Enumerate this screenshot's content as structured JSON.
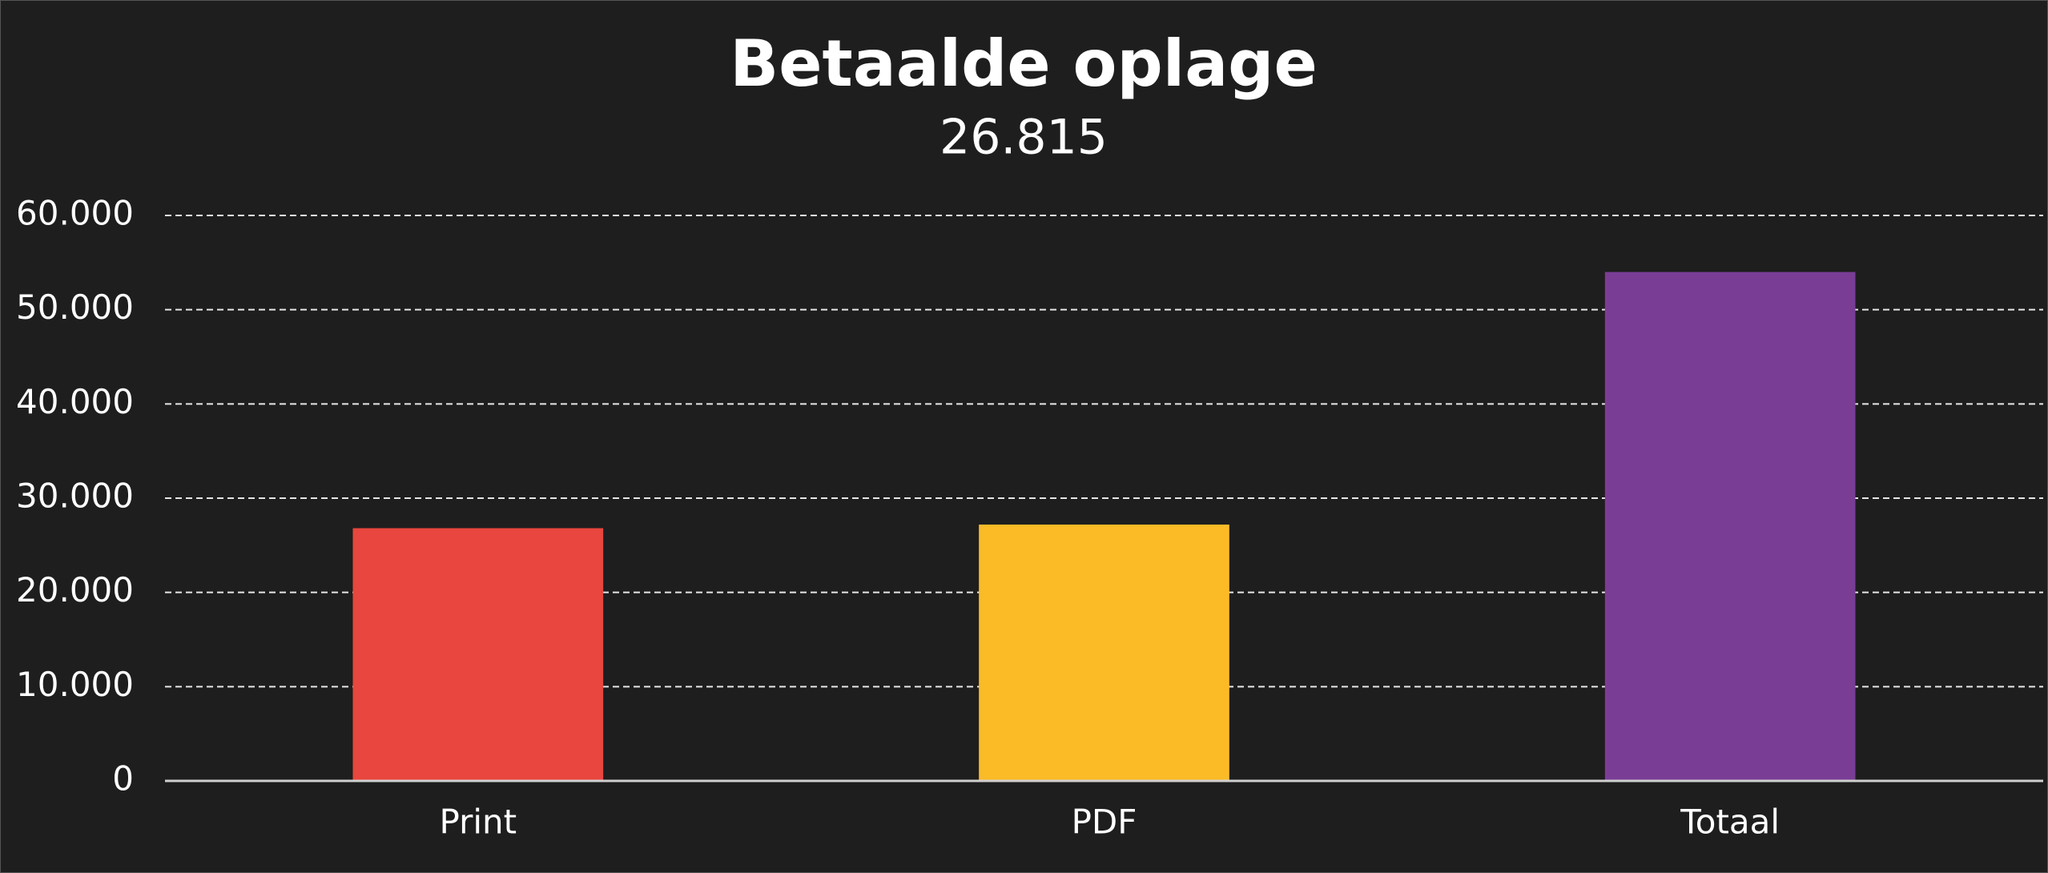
{
  "chart_data": {
    "type": "bar",
    "title": "Betaalde oplage",
    "subtitle": "26.815",
    "categories": [
      "Print",
      "PDF",
      "Totaal"
    ],
    "values": [
      26815,
      27200,
      54000
    ],
    "colors": [
      "#e8463e",
      "#fbbb27",
      "#7a3d96"
    ],
    "ylim": [
      0,
      60000
    ],
    "yticks": [
      0,
      {
        "value": 10000,
        "label": "10.000"
      },
      {
        "value": 20000,
        "label": "20.000"
      },
      {
        "value": 30000,
        "label": "30.000"
      },
      {
        "value": 40000,
        "label": "40.000"
      },
      {
        "value": 50000,
        "label": "50.000"
      },
      {
        "value": 60000,
        "label": "60.000"
      }
    ],
    "grid": true
  }
}
